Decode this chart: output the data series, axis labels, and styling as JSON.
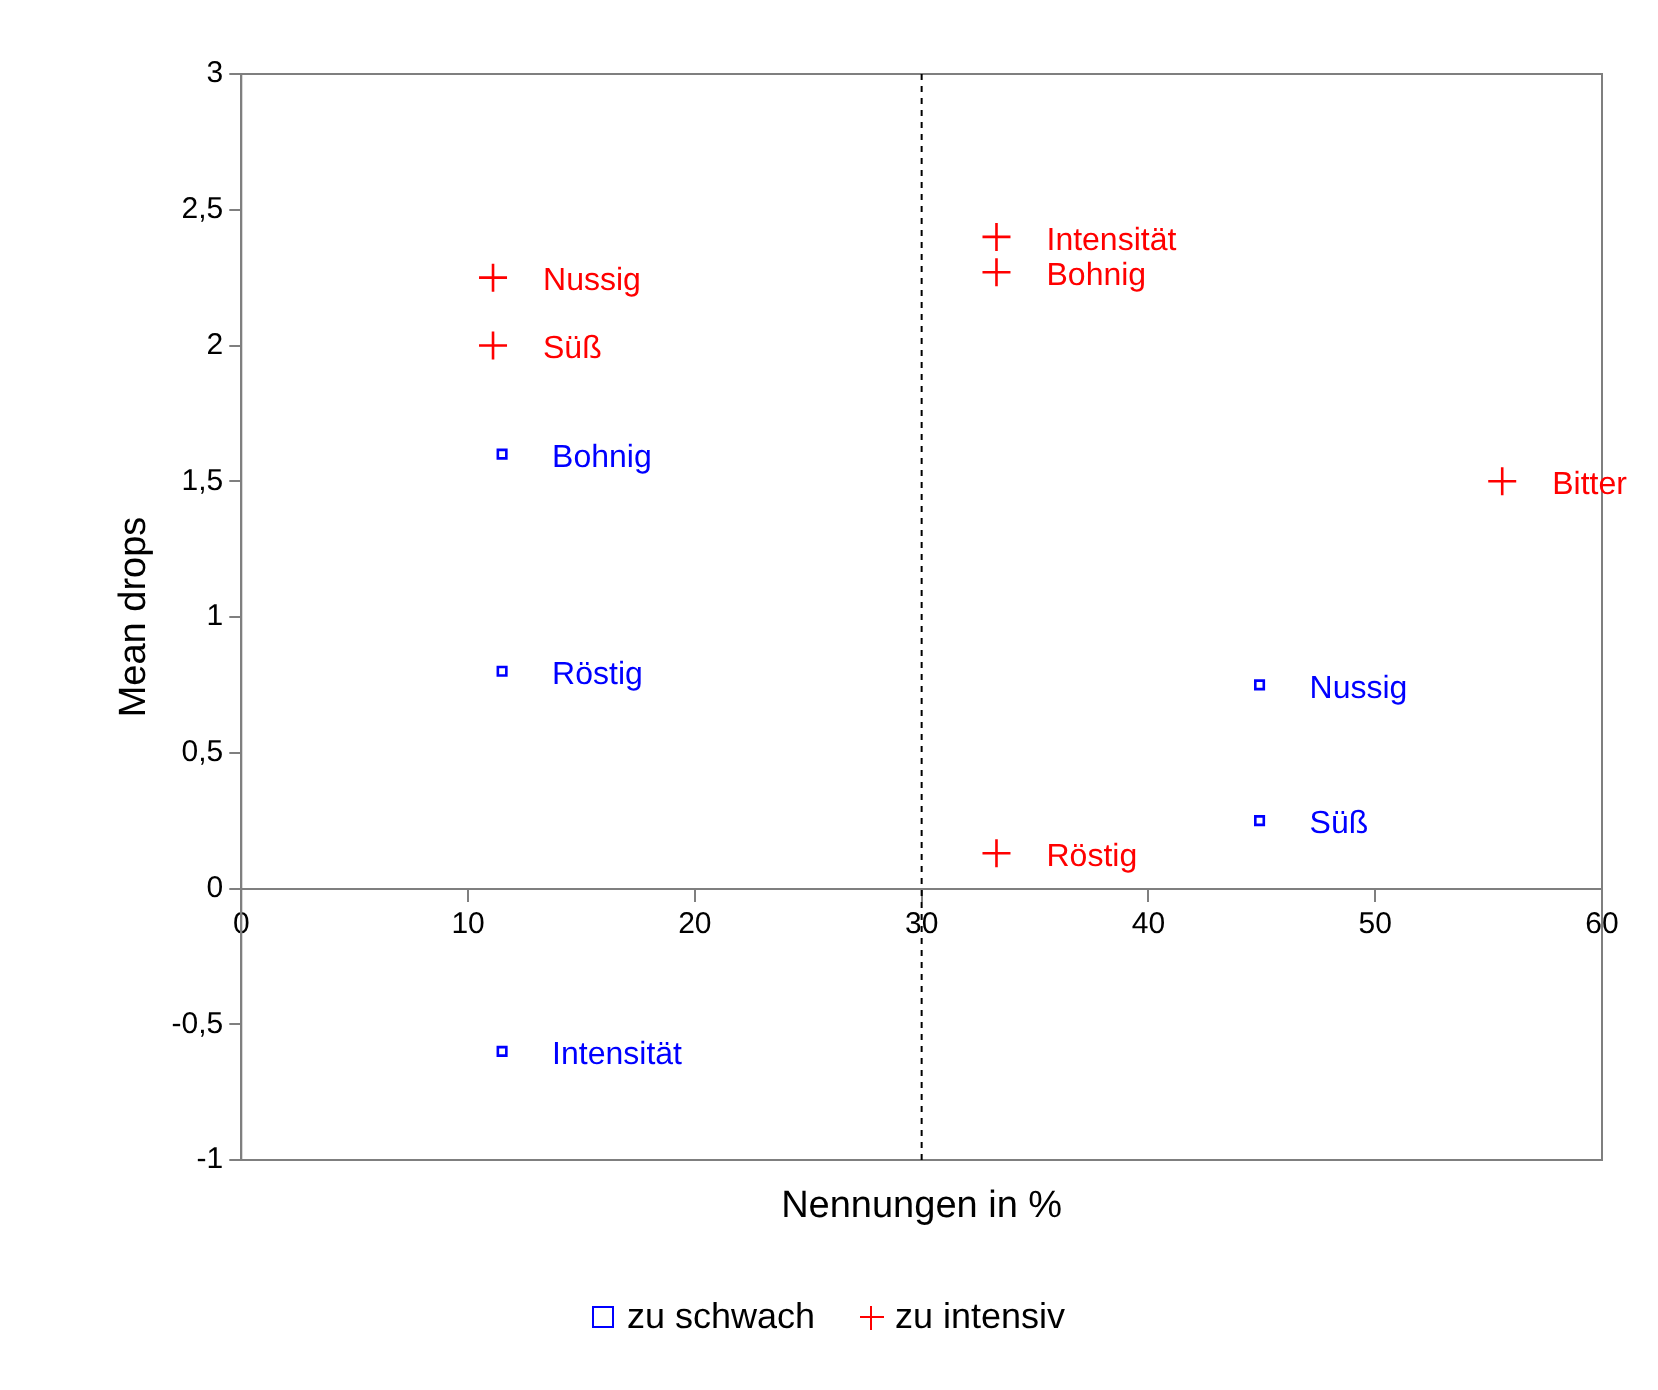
{
  "chart_data": {
    "type": "scatter",
    "xlabel": "Nennungen in %",
    "ylabel": "Mean drops",
    "series": [
      {
        "name": "zu schwach",
        "color": "#0000ff",
        "marker": "square",
        "x": [
          11.5,
          11.5,
          11.5,
          44.9,
          44.9
        ],
        "values": [
          1.6,
          0.8,
          -0.6,
          0.75,
          0.25
        ]
      },
      {
        "name": "zu intensiv",
        "color": "#ff0000",
        "marker": "cross",
        "x": [
          11.1,
          11.1,
          33.3,
          33.3,
          55.6,
          33.3
        ],
        "values": [
          2.25,
          2.0,
          2.4,
          2.27,
          1.5,
          0.13
        ]
      }
    ],
    "annotations": [
      {
        "text": "Bohnig",
        "x": 11.5,
        "y": 1.6
      },
      {
        "text": "Röstig",
        "x": 11.5,
        "y": 0.8
      },
      {
        "text": "Intensität",
        "x": 11.5,
        "y": -0.6
      },
      {
        "text": "Nussig",
        "x": 44.9,
        "y": 0.75
      },
      {
        "text": "Süß",
        "x": 44.9,
        "y": 0.25
      },
      {
        "text": "Nussig",
        "x": 11.1,
        "y": 2.25
      },
      {
        "text": "Süß",
        "x": 11.1,
        "y": 2.0
      },
      {
        "text": "Intensität",
        "x": 33.3,
        "y": 2.4
      },
      {
        "text": "Bohnig",
        "x": 33.3,
        "y": 2.27
      },
      {
        "text": "Bitter",
        "x": 55.6,
        "y": 1.5
      },
      {
        "text": "Röstig",
        "x": 33.3,
        "y": 0.13
      }
    ],
    "ref_lines": [
      {
        "axis": "x",
        "value": 30,
        "color": "#000000",
        "line_style": "dashed"
      }
    ],
    "xlim": [
      0,
      60
    ],
    "xticks": [
      0,
      10,
      20,
      30,
      40,
      50,
      60
    ],
    "ylim": [
      -1,
      3
    ],
    "yticks": [
      {
        "value": -1,
        "label": "-1"
      },
      {
        "value": -0.5,
        "label": "-0,5"
      },
      {
        "value": 0,
        "label": "0"
      },
      {
        "value": 0.5,
        "label": "0,5"
      },
      {
        "value": 1,
        "label": "1"
      },
      {
        "value": 1.5,
        "label": "1,5"
      },
      {
        "value": 2,
        "label": "2"
      },
      {
        "value": 2.5,
        "label": "2,5"
      },
      {
        "value": 3,
        "label": "3"
      }
    ],
    "grid": false,
    "legend": "bottom"
  }
}
